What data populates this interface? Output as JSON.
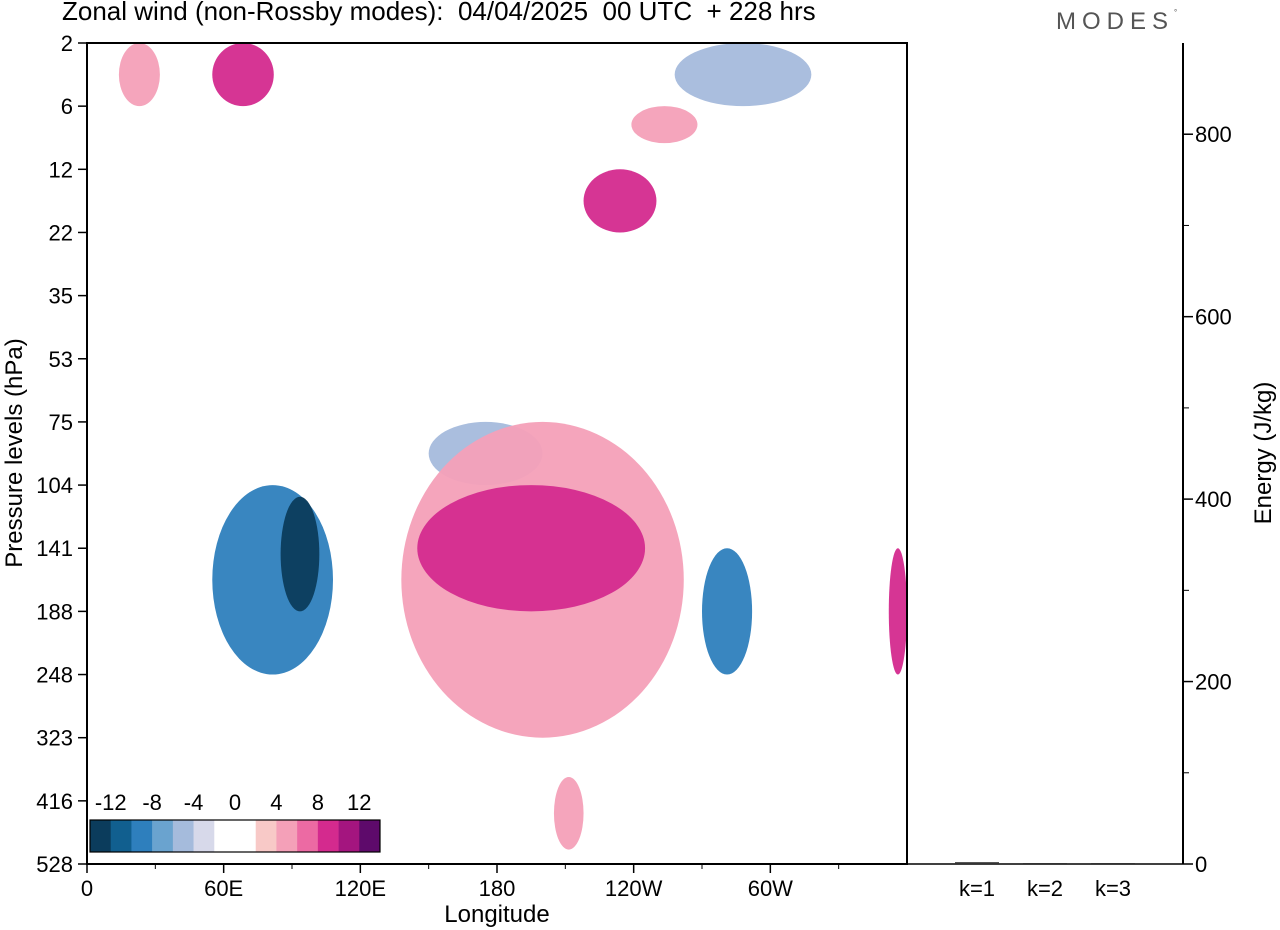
{
  "header": {
    "title": "Zonal wind (non-Rossby modes):  04/04/2025  00 UTC  + 228 hrs",
    "brand": "MODES",
    "brand_mark": "°"
  },
  "chart_data": [
    {
      "type": "heatmap",
      "title": "Zonal wind (non-Rossby modes):  04/04/2025  00 UTC  + 228 hrs",
      "xlabel": "Longitude",
      "ylabel": "Pressure levels (hPa)",
      "x_ticks": [
        "0",
        "60E",
        "120E",
        "180",
        "120W",
        "60W"
      ],
      "x_tick_values": [
        0,
        60,
        120,
        180,
        240,
        300
      ],
      "x_range": [
        0,
        360
      ],
      "y_ticks": [
        "2",
        "6",
        "12",
        "22",
        "35",
        "53",
        "75",
        "104",
        "141",
        "188",
        "248",
        "323",
        "416",
        "528"
      ],
      "y_scale": "model levels (top 2 hPa, bottom 528 hPa)",
      "colorbar": {
        "labels": [
          "-12",
          "-8",
          "-4",
          "0",
          "4",
          "8",
          "12"
        ],
        "colors": [
          "#0b3c5c",
          "#115f8f",
          "#2e7fbd",
          "#6aa3cf",
          "#a5bbdc",
          "#d7d9ea",
          "#ffffff",
          "#ffffff",
          "#f8c9c7",
          "#f4a0b8",
          "#ec6aa3",
          "#d42a8e",
          "#a4157f",
          "#5e0a6b"
        ],
        "placement": "bottom-left"
      },
      "grid": false,
      "regions": [
        {
          "sign": "positive",
          "level": 4,
          "lon": [
            14,
            32
          ],
          "p_top": 2,
          "p_bottom": 6
        },
        {
          "sign": "positive",
          "level": 8,
          "lon": [
            55,
            82
          ],
          "p_top": 2,
          "p_bottom": 6
        },
        {
          "sign": "positive",
          "level": 4,
          "lon": [
            239,
            268
          ],
          "p_top": 6,
          "p_bottom": 9
        },
        {
          "sign": "positive",
          "level": 8,
          "lon": [
            218,
            250
          ],
          "p_top": 12,
          "p_bottom": 22
        },
        {
          "sign": "negative",
          "level": -4,
          "lon": [
            258,
            318
          ],
          "p_top": 2,
          "p_bottom": 6
        },
        {
          "sign": "negative",
          "level": -4,
          "lon": [
            150,
            200
          ],
          "p_top": 75,
          "p_bottom": 104
        },
        {
          "sign": "negative",
          "level": -8,
          "lon": [
            55,
            108
          ],
          "p_top": 104,
          "p_bottom": 248
        },
        {
          "sign": "negative",
          "level": -12,
          "lon": [
            85,
            102
          ],
          "p_top": 110,
          "p_bottom": 188
        },
        {
          "sign": "positive",
          "level": 4,
          "lon": [
            138,
            262
          ],
          "p_top": 75,
          "p_bottom": 323
        },
        {
          "sign": "positive",
          "level": 8,
          "lon": [
            145,
            245
          ],
          "p_top": 104,
          "p_bottom": 188
        },
        {
          "sign": "negative",
          "level": -8,
          "lon": [
            270,
            292
          ],
          "p_top": 141,
          "p_bottom": 248
        },
        {
          "sign": "positive",
          "level": 8,
          "lon": [
            352,
            360
          ],
          "p_top": 141,
          "p_bottom": 248
        },
        {
          "sign": "positive",
          "level": 4,
          "lon": [
            205,
            218
          ],
          "p_top": 378,
          "p_bottom": 500
        }
      ]
    },
    {
      "type": "bar",
      "categories": [
        "k=1",
        "k=2",
        "k=3"
      ],
      "values": [
        2,
        1,
        0
      ],
      "ylabel": "Energy (J/kg)",
      "y_ticks": [
        "0",
        "200",
        "400",
        "600",
        "800"
      ],
      "ylim": [
        0,
        900
      ]
    }
  ]
}
